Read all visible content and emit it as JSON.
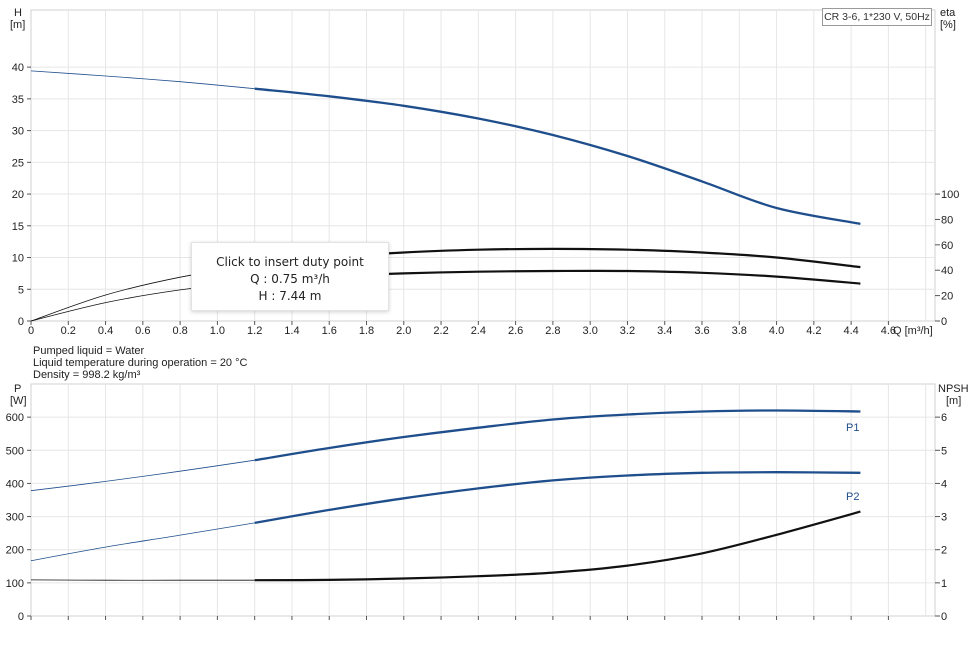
{
  "pump_model": "CR 3-6, 1*230 V, 50Hz",
  "tooltip": {
    "title": "Click to insert duty point",
    "q_text": "Q : 0.75 m³/h",
    "h_text": "H : 7.44 m"
  },
  "info": {
    "liquid": "Pumped liquid = Water",
    "temperature": "Liquid temperature during operation = 20 °C",
    "density": "Density = 998.2 kg/m³"
  },
  "chart_data": [
    {
      "type": "line",
      "x_label": "Q [m³/h]",
      "y_label_left": [
        "H",
        "[m]"
      ],
      "y_label_right": [
        "eta",
        "[%]"
      ],
      "x_ticks": [
        "0",
        "0.2",
        "0.4",
        "0.6",
        "0.8",
        "1.0",
        "1.2",
        "1.4",
        "1.6",
        "1.8",
        "2.0",
        "2.2",
        "2.4",
        "2.6",
        "2.8",
        "3.0",
        "3.2",
        "3.4",
        "3.6",
        "3.8",
        "4.0",
        "4.2",
        "4.4",
        "4.6"
      ],
      "xlim": [
        0,
        4.85
      ],
      "y_left_ticks": [
        "0",
        "5",
        "10",
        "15",
        "20",
        "25",
        "30",
        "35",
        "40"
      ],
      "ylim_left": [
        0,
        49
      ],
      "y_right_ticks": [
        "0",
        "20",
        "40",
        "60",
        "80",
        "100"
      ],
      "ylim_right": [
        0,
        245
      ],
      "grid": true,
      "series": [
        {
          "id": "H",
          "axis": "left",
          "color": "#1f4e8c",
          "x": [
            0,
            0.4,
            0.8,
            1.2,
            1.6,
            2.0,
            2.4,
            2.8,
            3.2,
            3.6,
            4.0,
            4.45
          ],
          "y": [
            39.4,
            38.6,
            37.7,
            36.6,
            35.4,
            33.9,
            31.9,
            29.3,
            26.0,
            22.0,
            17.8,
            15.3
          ]
        },
        {
          "id": "eta",
          "axis": "right",
          "color": "#111111",
          "x": [
            0,
            0.4,
            0.8,
            1.2,
            1.6,
            2.0,
            2.4,
            2.8,
            3.2,
            3.6,
            4.0,
            4.45
          ],
          "y": [
            0,
            20.5,
            34.5,
            44.0,
            50.0,
            54.0,
            56.2,
            56.8,
            56.2,
            54.0,
            50.0,
            42.5
          ]
        },
        {
          "id": "eta-total",
          "axis": "right",
          "color": "#111111",
          "x": [
            0,
            0.4,
            0.8,
            1.2,
            1.6,
            2.0,
            2.4,
            2.8,
            3.2,
            3.6,
            4.0,
            4.45
          ],
          "y": [
            0,
            14.5,
            24.5,
            31.0,
            35.0,
            37.5,
            38.8,
            39.4,
            39.4,
            38.0,
            35.0,
            29.5
          ]
        }
      ]
    },
    {
      "type": "line",
      "y_label_left": [
        "P",
        "[W]"
      ],
      "y_label_right": [
        "NPSH",
        "[m]"
      ],
      "xlim": [
        0,
        4.85
      ],
      "y_left_ticks": [
        "0",
        "100",
        "200",
        "300",
        "400",
        "500",
        "600"
      ],
      "ylim_left": [
        0,
        700
      ],
      "y_right_ticks": [
        "0",
        "1",
        "2",
        "3",
        "4",
        "5",
        "6"
      ],
      "ylim_right": [
        0,
        7
      ],
      "grid": true,
      "series": [
        {
          "id": "P1",
          "name": "P1",
          "axis": "left",
          "color": "#1f4e8c",
          "x": [
            0,
            0.4,
            0.8,
            1.2,
            1.6,
            2.0,
            2.4,
            2.8,
            3.2,
            3.6,
            4.0,
            4.45
          ],
          "y": [
            378,
            406,
            437,
            470,
            507,
            540,
            568,
            593,
            608,
            617,
            620,
            617
          ]
        },
        {
          "id": "P2",
          "name": "P2",
          "axis": "left",
          "color": "#1f4e8c",
          "x": [
            0,
            0.4,
            0.8,
            1.2,
            1.6,
            2.0,
            2.4,
            2.8,
            3.2,
            3.6,
            4.0,
            4.45
          ],
          "y": [
            167,
            208,
            244,
            281,
            320,
            355,
            385,
            409,
            424,
            432,
            434,
            432
          ]
        },
        {
          "id": "NPSH",
          "axis": "right",
          "color": "#111111",
          "x": [
            0,
            0.4,
            0.8,
            1.2,
            1.6,
            2.0,
            2.4,
            2.8,
            3.2,
            3.6,
            4.0,
            4.45
          ],
          "y": [
            1.09,
            1.08,
            1.08,
            1.08,
            1.09,
            1.13,
            1.2,
            1.31,
            1.52,
            1.89,
            2.45,
            3.15
          ]
        }
      ]
    }
  ]
}
